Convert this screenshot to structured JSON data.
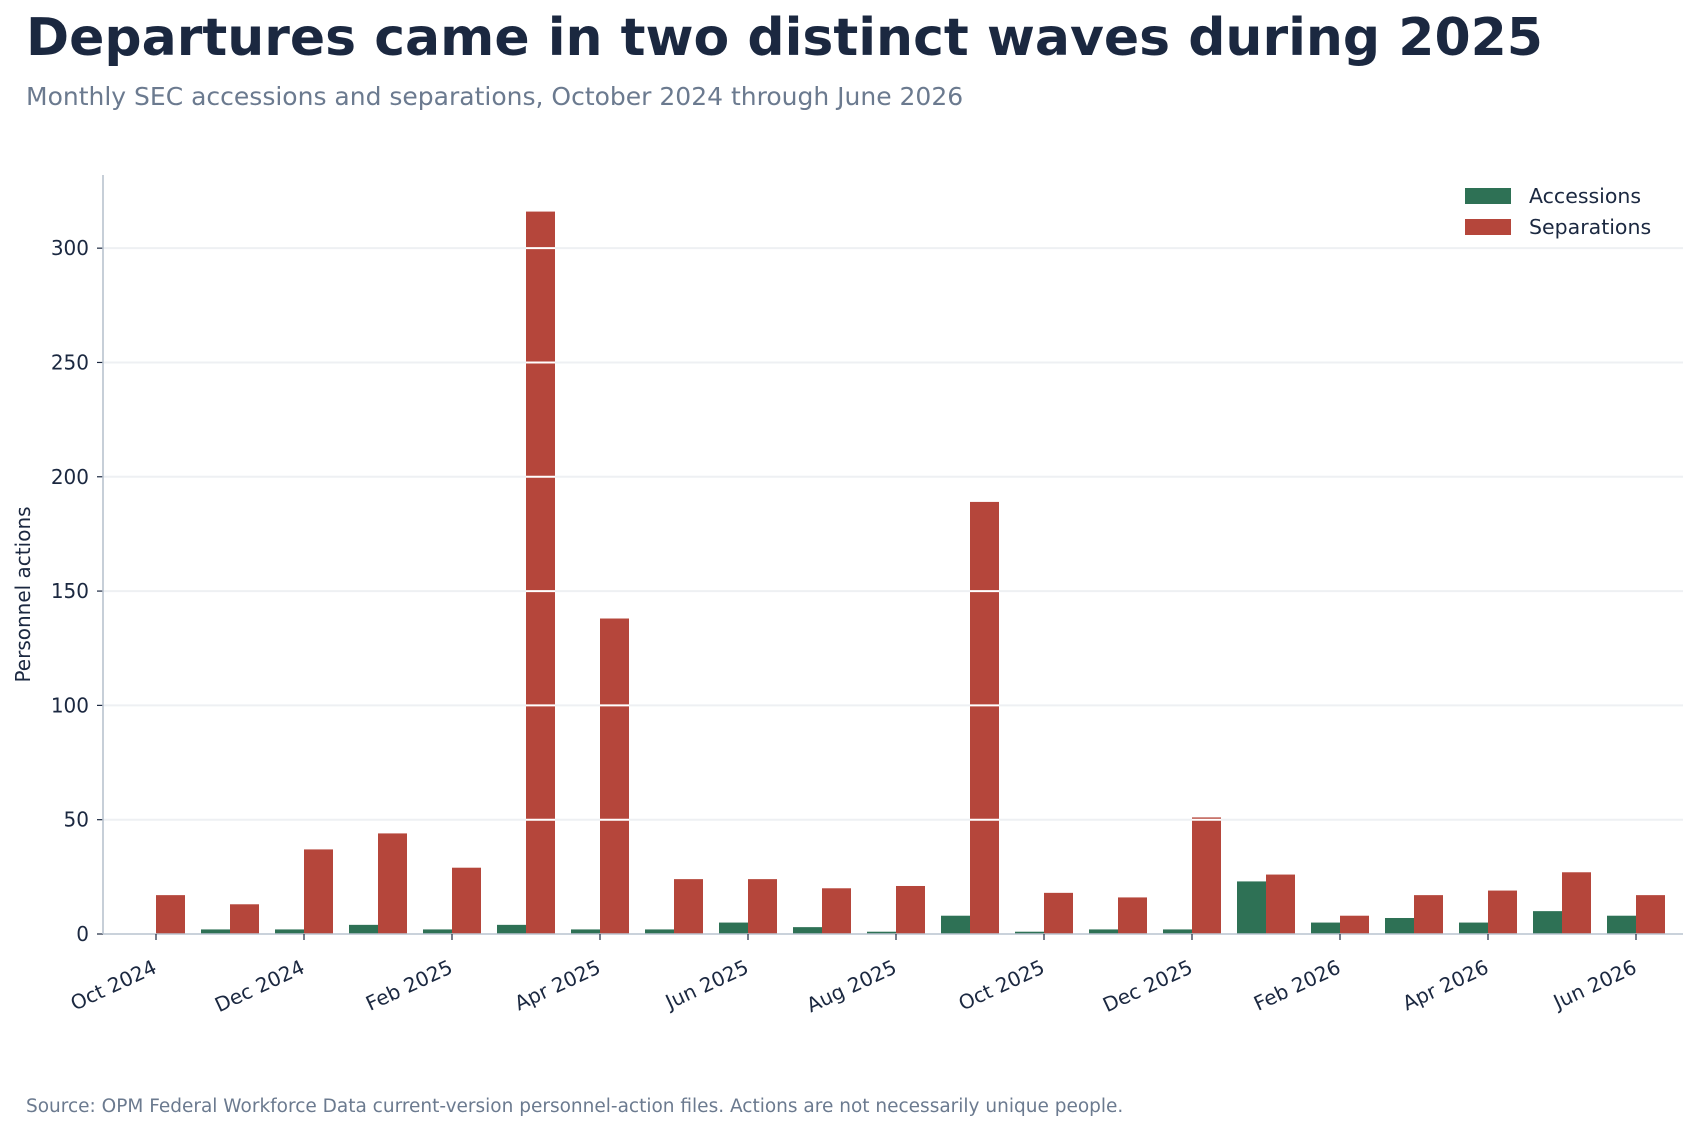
{
  "title": "Departures came in two distinct waves during 2025",
  "subtitle": "Monthly SEC accessions and separations, October 2024 through June 2026",
  "source": "Source: OPM Federal Workforce Data current-version personnel-action files. Actions are not necessarily unique people.",
  "colors": {
    "accessions": "#2e7155",
    "separations": "#b5463b",
    "text": "#1b2840",
    "muted": "#6b7a8f",
    "grid": "#eef0f3",
    "axis": "#b9c3cf"
  },
  "chart_data": {
    "type": "bar",
    "xlabel": "",
    "ylabel": "Personnel actions",
    "ylim": [
      0,
      332
    ],
    "yticks": [
      0,
      50,
      100,
      150,
      200,
      250,
      300
    ],
    "grid": "horizontal",
    "legend": "top-right",
    "categories": [
      "Oct 2024",
      "Nov 2024",
      "Dec 2024",
      "Jan 2025",
      "Feb 2025",
      "Mar 2025",
      "Apr 2025",
      "May 2025",
      "Jun 2025",
      "Jul 2025",
      "Aug 2025",
      "Sep 2025",
      "Oct 2025",
      "Nov 2025",
      "Dec 2025",
      "Jan 2026",
      "Feb 2026",
      "Mar 2026",
      "Apr 2026",
      "May 2026",
      "Jun 2026"
    ],
    "tick_labels": [
      "Oct 2024",
      "Dec 2024",
      "Feb 2025",
      "Apr 2025",
      "Jun 2025",
      "Aug 2025",
      "Oct 2025",
      "Dec 2025",
      "Feb 2026",
      "Apr 2026",
      "Jun 2026"
    ],
    "series": [
      {
        "name": "Accessions",
        "values": [
          0,
          2,
          2,
          4,
          2,
          4,
          2,
          2,
          5,
          3,
          1,
          8,
          1,
          2,
          2,
          23,
          5,
          7,
          5,
          10,
          8
        ]
      },
      {
        "name": "Separations",
        "values": [
          17,
          13,
          37,
          44,
          29,
          316,
          138,
          24,
          24,
          20,
          21,
          189,
          18,
          16,
          51,
          26,
          8,
          17,
          19,
          27,
          17
        ]
      }
    ]
  }
}
